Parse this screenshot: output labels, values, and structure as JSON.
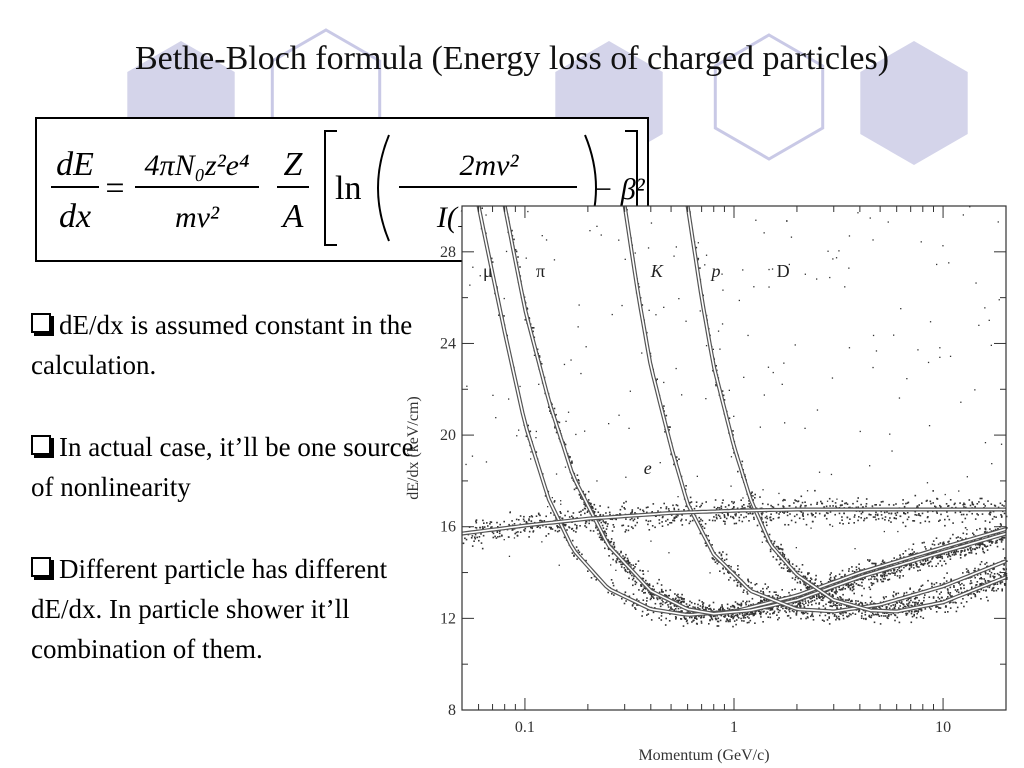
{
  "slide": {
    "title": "Bethe-Bloch formula (Energy loss of charged particles)"
  },
  "formula": {
    "lhs_num": "dE",
    "lhs_den": "dx",
    "eq": "=",
    "c_num": "4πN₀z²e⁴",
    "c_den": "mv²",
    "z": "Z",
    "a": "A",
    "ln": "ln",
    "in_num": "2mv²",
    "in_den": "I(1 − β²)",
    "tail": "− β²"
  },
  "bullets": [
    "dE/dx is assumed constant in the calculation.",
    "In actual case, it’ll be one source of nonlinearity",
    "Different particle has different dE/dx. In particle shower it’ll combination of them."
  ],
  "colors": {
    "hexagon_fill": "#d4d4ea",
    "hexagon_stroke": "#c9c9e6",
    "scatter_dots": "#333333",
    "curve": "#555555"
  },
  "chart_data": {
    "type": "scatter",
    "xlabel": "Momentum (GeV/c)",
    "ylabel": "dE/dx (keV/cm)",
    "x_scale": "log",
    "xlim": [
      0.05,
      20
    ],
    "ylim": [
      8,
      30
    ],
    "x_ticks": [
      {
        "value": 0.1,
        "label": "0.1"
      },
      {
        "value": 1,
        "label": "1"
      },
      {
        "value": 10,
        "label": "10"
      }
    ],
    "y_ticks": [
      {
        "value": 8,
        "label": "8"
      },
      {
        "value": 12,
        "label": "12"
      },
      {
        "value": 16,
        "label": "16"
      },
      {
        "value": 20,
        "label": "20"
      },
      {
        "value": 24,
        "label": "24"
      },
      {
        "value": 28,
        "label": "28"
      }
    ],
    "grid": false,
    "series": [
      {
        "name": "μ",
        "label_x": 0.063,
        "label_y": 26.9,
        "points": [
          [
            0.06,
            30
          ],
          [
            0.08,
            24.5
          ],
          [
            0.1,
            20.5
          ],
          [
            0.13,
            17.2
          ],
          [
            0.17,
            15
          ],
          [
            0.25,
            13.3
          ],
          [
            0.4,
            12.4
          ],
          [
            0.6,
            12.15
          ],
          [
            1,
            12.3
          ],
          [
            2,
            13
          ],
          [
            4,
            14
          ],
          [
            10,
            15.1
          ],
          [
            20,
            15.9
          ]
        ]
      },
      {
        "name": "π",
        "label_x": 0.113,
        "label_y": 26.9,
        "points": [
          [
            0.08,
            30
          ],
          [
            0.1,
            25.5
          ],
          [
            0.13,
            21.5
          ],
          [
            0.17,
            18.2
          ],
          [
            0.25,
            15.2
          ],
          [
            0.4,
            13.2
          ],
          [
            0.6,
            12.4
          ],
          [
            0.8,
            12.2
          ],
          [
            1.2,
            12.35
          ],
          [
            2,
            12.8
          ],
          [
            4,
            13.8
          ],
          [
            10,
            14.9
          ],
          [
            20,
            15.7
          ]
        ]
      },
      {
        "name": "K",
        "label_x": 0.4,
        "label_y": 26.9,
        "points": [
          [
            0.3,
            30
          ],
          [
            0.35,
            26
          ],
          [
            0.4,
            23
          ],
          [
            0.5,
            19.5
          ],
          [
            0.6,
            17
          ],
          [
            0.8,
            14.8
          ],
          [
            1.2,
            13.2
          ],
          [
            2,
            12.4
          ],
          [
            3,
            12.3
          ],
          [
            5,
            12.6
          ],
          [
            10,
            13.4
          ],
          [
            20,
            14.5
          ]
        ]
      },
      {
        "name": "p",
        "label_x": 0.78,
        "label_y": 26.9,
        "points": [
          [
            0.6,
            30
          ],
          [
            0.7,
            26
          ],
          [
            0.8,
            23
          ],
          [
            1,
            19.5
          ],
          [
            1.2,
            17.2
          ],
          [
            1.5,
            15.2
          ],
          [
            2,
            13.9
          ],
          [
            3,
            12.8
          ],
          [
            4.5,
            12.35
          ],
          [
            6,
            12.3
          ],
          [
            10,
            12.7
          ],
          [
            20,
            13.8
          ]
        ]
      },
      {
        "name": "D",
        "label_x": 1.6,
        "label_y": 26.9,
        "points": []
      },
      {
        "name": "e",
        "label_x": 0.37,
        "label_y": 18.3,
        "points": [
          [
            0.05,
            15.7
          ],
          [
            0.1,
            16.05
          ],
          [
            0.2,
            16.35
          ],
          [
            0.5,
            16.6
          ],
          [
            1,
            16.7
          ],
          [
            2,
            16.75
          ],
          [
            5,
            16.75
          ],
          [
            10,
            16.75
          ],
          [
            20,
            16.75
          ]
        ]
      }
    ]
  }
}
